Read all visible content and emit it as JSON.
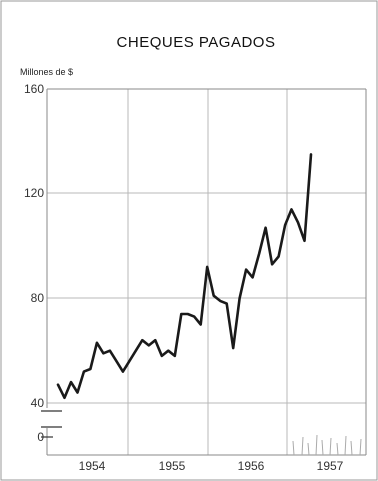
{
  "chart_data": {
    "type": "line",
    "title": "CHEQUES PAGADOS",
    "ylabel": "Millones de $",
    "xlabel": "",
    "x_tick_labels": [
      "1954",
      "1955",
      "1956",
      "1957"
    ],
    "y_tick_labels": [
      "160",
      "120",
      "80",
      "40",
      "0"
    ],
    "y_ticks": [
      160,
      120,
      80,
      40,
      0
    ],
    "ylim": [
      0,
      160
    ],
    "y_axis_break": true,
    "grid": true,
    "series": [
      {
        "values": [
          47,
          42,
          48,
          44,
          52,
          53,
          63,
          59,
          60,
          56,
          52,
          56,
          60,
          64,
          62,
          64,
          58,
          60,
          58,
          74,
          74,
          73,
          70,
          92,
          81,
          79,
          78,
          61,
          80,
          91,
          88,
          97,
          107,
          93,
          96,
          108,
          114,
          109,
          102,
          135
        ]
      }
    ],
    "colors": {
      "line": "#1a1a1a",
      "grid": "#b8b8b8",
      "frame": "#8a8a8a"
    }
  }
}
